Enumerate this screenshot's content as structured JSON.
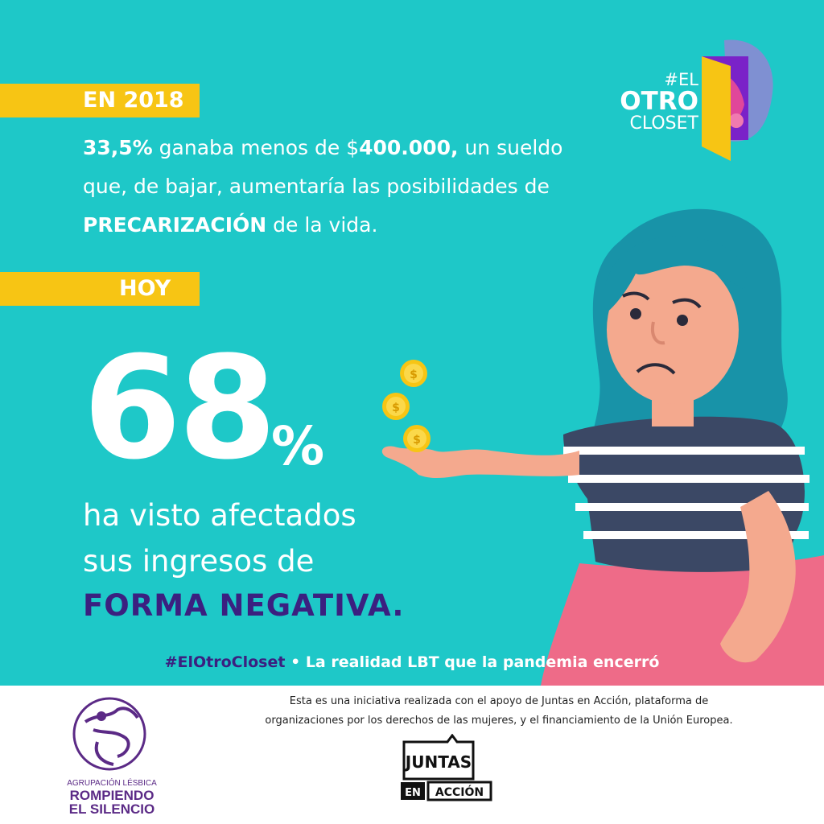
{
  "tags": {
    "year": "EN 2018",
    "today": "HOY"
  },
  "paragraph": {
    "stat": "33,5%",
    "part1": " ganaba menos de $",
    "amount": "400.000,",
    "part2": " un sueldo que, de bajar, aumentaría las posibilidades de ",
    "keyword": "PRECARIZACIÓN",
    "part3": " de la vida."
  },
  "headline": {
    "number": "68",
    "percent": "%",
    "line1": "ha visto afectados",
    "line2": "sus ingresos de",
    "emphasis": "FORMA NEGATIVA."
  },
  "campaign": {
    "hashtag": "#ElOtroCloset",
    "separator": " • ",
    "tagline": "La realidad LBT que la pandemia encerró"
  },
  "logo": {
    "line1": "#EL",
    "line2": "OTRO",
    "line3": "CLOSET"
  },
  "footer": {
    "credit_line1": "Esta es una iniciativa realizada con el apoyo de Juntas en Acción, plataforma de",
    "credit_line2": "organizaciones por los derechos de las mujeres, y el financiamiento de la Unión Europea.",
    "org_small": "AGRUPACIÓN LÉSBICA",
    "org_line1": "ROMPIENDO",
    "org_line2": "EL SILENCIO",
    "juntas_line1": "JUNTAS",
    "juntas_en": "EN",
    "juntas_accion": "ACCIÓN"
  },
  "colors": {
    "background": "#1ec8c8",
    "accent_yellow": "#f7c514",
    "accent_purple": "#3b2080",
    "hair": "#1893a8",
    "skin": "#f4a98e",
    "shirt_navy": "#3b4865",
    "skirt_pink": "#ee6b88"
  }
}
